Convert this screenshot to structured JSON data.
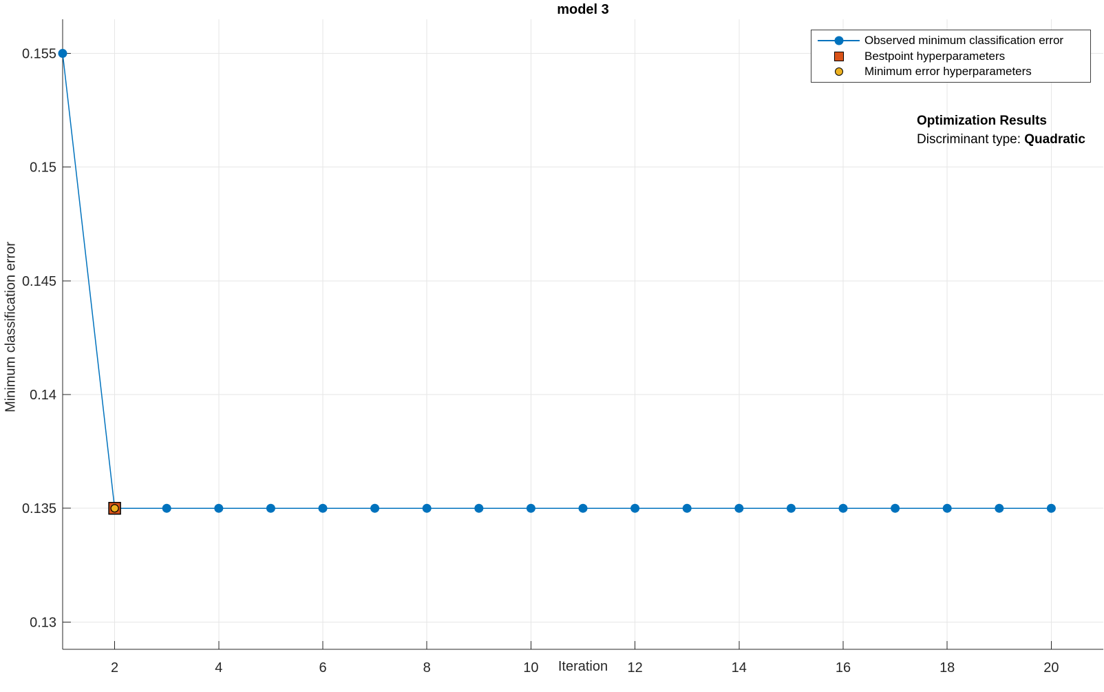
{
  "figure": {
    "title": "model 3"
  },
  "axes": {
    "xlabel": "Iteration",
    "ylabel": "Minimum classification error"
  },
  "legend": {
    "items": [
      {
        "label": "Observed minimum classification error",
        "marker": "line-circle",
        "color": "#0072BD"
      },
      {
        "label": "Bestpoint hyperparameters",
        "marker": "square",
        "color": "#D95319"
      },
      {
        "label": "Minimum error hyperparameters",
        "marker": "circle",
        "color": "#EDB120"
      }
    ]
  },
  "annotation": {
    "heading": "Optimization Results",
    "label": "Discriminant type: ",
    "value": "Quadratic"
  },
  "chart_data": {
    "type": "line",
    "title": "model 3",
    "xlabel": "Iteration",
    "ylabel": "Minimum classification error",
    "series": [
      {
        "name": "Observed minimum classification error",
        "x": [
          1,
          2,
          3,
          4,
          5,
          6,
          7,
          8,
          9,
          10,
          11,
          12,
          13,
          14,
          15,
          16,
          17,
          18,
          19,
          20
        ],
        "y": [
          0.155,
          0.135,
          0.135,
          0.135,
          0.135,
          0.135,
          0.135,
          0.135,
          0.135,
          0.135,
          0.135,
          0.135,
          0.135,
          0.135,
          0.135,
          0.135,
          0.135,
          0.135,
          0.135,
          0.135
        ]
      }
    ],
    "bestpoint_hyperparameters": {
      "x": 2,
      "y": 0.135
    },
    "minimum_error_hyperparameters": {
      "x": 2,
      "y": 0.135
    },
    "xlim": [
      1,
      21
    ],
    "ylim": [
      0.1288,
      0.1565
    ],
    "xticks": [
      2,
      4,
      6,
      8,
      10,
      12,
      14,
      16,
      18,
      20
    ],
    "xtick_labels": [
      "2",
      "4",
      "6",
      "8",
      "10",
      "12",
      "14",
      "16",
      "18",
      "20"
    ],
    "yticks": [
      0.13,
      0.135,
      0.14,
      0.145,
      0.15,
      0.155
    ],
    "ytick_labels": [
      "0.13",
      "0.135",
      "0.14",
      "0.145",
      "0.15",
      "0.155"
    ],
    "grid": true,
    "legend_position": "top-right",
    "colors": {
      "line": "#0072BD",
      "marker_fill": "#0072BD",
      "bestpoint_fill": "#D95319",
      "bestpoint_edge": "#000000",
      "min_error_fill": "#EDB120",
      "min_error_edge": "#000000",
      "grid": "#e6e6e6",
      "axis": "#262626"
    }
  }
}
